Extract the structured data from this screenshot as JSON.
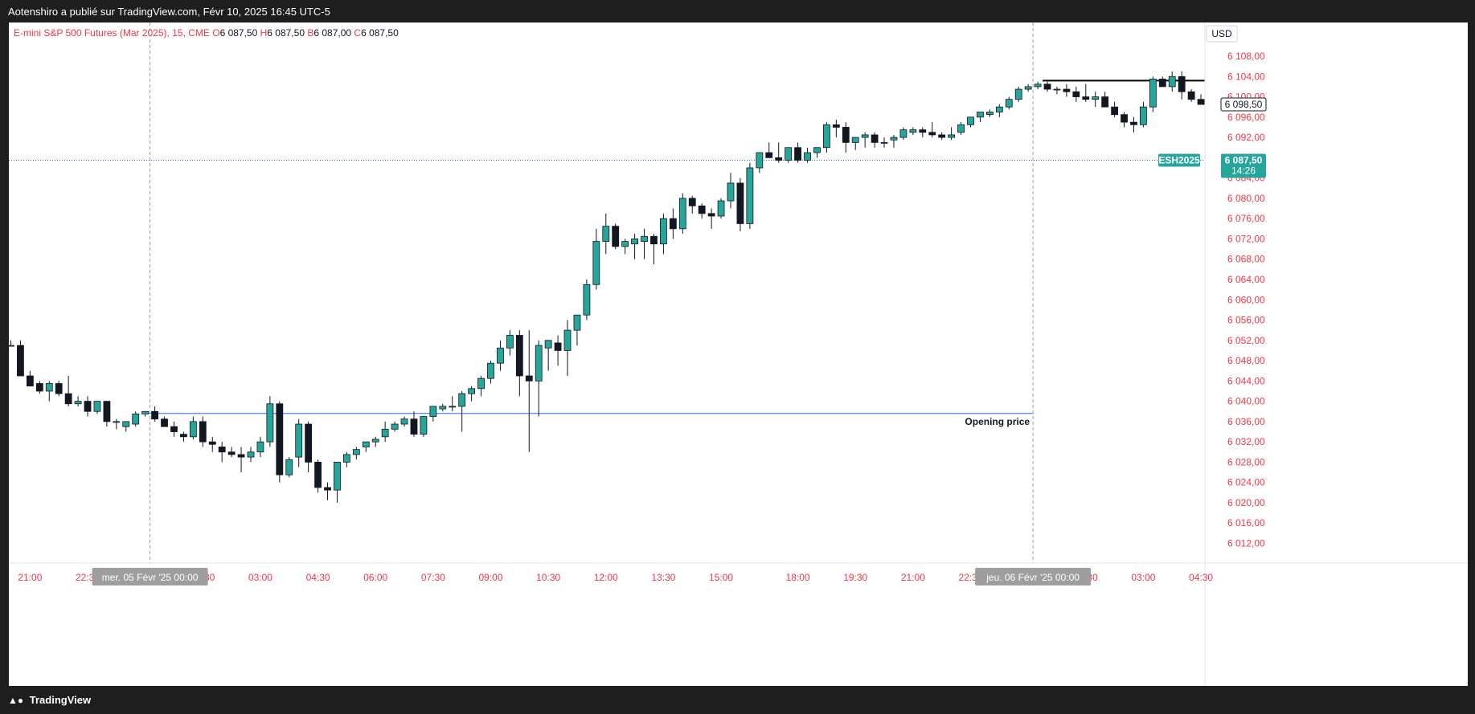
{
  "header": {
    "publish_info": "Aotenshiro a publié sur TradingView.com, Févr 10, 2025 16:45 UTC-5"
  },
  "footer": {
    "brand": "TradingView",
    "logo_icon": "tradingview-logo-icon"
  },
  "colors": {
    "up": "#26a69a",
    "down": "#131722",
    "axis_text": "#f23645",
    "symbol_line": "#2962ff",
    "badge": "#26a69a"
  },
  "chart_data": {
    "type": "candlestick",
    "symbol": "E-mini S&P 500 Futures (Mar 2025)",
    "interval": "15",
    "exchange": "CME",
    "ohlc_legend": {
      "O_label": "O",
      "O": "6 087,50",
      "H_label": "H",
      "H": "6 087,50",
      "B_label": "B",
      "B": "6 087,00",
      "C_label": "C",
      "C": "6 087,50"
    },
    "currency": "USD",
    "ylim": [
      6012,
      6108
    ],
    "y_ticks": [
      "6 012,00",
      "6 016,00",
      "6 020,00",
      "6 024,00",
      "6 028,00",
      "6 032,00",
      "6 036,00",
      "6 040,00",
      "6 044,00",
      "6 048,00",
      "6 052,00",
      "6 056,00",
      "6 060,00",
      "6 064,00",
      "6 068,00",
      "6 072,00",
      "6 076,00",
      "6 080,00",
      "6 084,00",
      "6 088,00",
      "6 092,00",
      "6 096,00",
      "6 100,00",
      "6 104,00",
      "6 108,00"
    ],
    "y_tick_values": [
      6012,
      6016,
      6020,
      6024,
      6028,
      6032,
      6036,
      6040,
      6044,
      6048,
      6052,
      6056,
      6060,
      6064,
      6068,
      6072,
      6076,
      6080,
      6084,
      6088,
      6092,
      6096,
      6100,
      6104,
      6108
    ],
    "x_ticks": [
      "21:00",
      "22:30",
      "01:30",
      "03:00",
      "04:30",
      "06:00",
      "07:30",
      "09:00",
      "10:30",
      "12:00",
      "13:30",
      "15:00",
      "18:00",
      "19:30",
      "21:00",
      "22:30",
      "01:30",
      "03:00",
      "04:30"
    ],
    "x_tick_bars": [
      2,
      8,
      20,
      26,
      32,
      38,
      44,
      50,
      56,
      62,
      68,
      74,
      82,
      88,
      94,
      100,
      112,
      118,
      124
    ],
    "day_separators": [
      {
        "label": "mer. 05 Févr '25   00:00",
        "bar": 14.5
      },
      {
        "label": "jeu. 06 Févr '25   00:00",
        "bar": 106.5
      }
    ],
    "candles": [
      [
        6051,
        6052,
        6051,
        6051
      ],
      [
        6051,
        6052,
        6045,
        6045
      ],
      [
        6045,
        6046,
        6043,
        6043
      ],
      [
        6043.5,
        6044,
        6041.5,
        6042
      ],
      [
        6042,
        6044,
        6040,
        6043.5
      ],
      [
        6043.5,
        6044,
        6041,
        6041.5
      ],
      [
        6041.5,
        6045,
        6039,
        6039.5
      ],
      [
        6039.5,
        6041,
        6039,
        6040
      ],
      [
        6040,
        6041,
        6037,
        6038
      ],
      [
        6038,
        6040,
        6037.5,
        6040
      ],
      [
        6040,
        6040,
        6035,
        6036
      ],
      [
        6036,
        6036.5,
        6034.5,
        6036
      ],
      [
        6035,
        6036,
        6034,
        6036
      ],
      [
        6035.5,
        6038,
        6035,
        6037.5
      ],
      [
        6037.5,
        6038,
        6037,
        6038
      ],
      [
        6038,
        6039,
        6036,
        6036.5
      ],
      [
        6036.5,
        6037,
        6035,
        6035
      ],
      [
        6035,
        6036,
        6033,
        6034
      ],
      [
        6033.5,
        6034,
        6032,
        6033
      ],
      [
        6033,
        6037,
        6032.5,
        6036
      ],
      [
        6036,
        6037,
        6031,
        6032
      ],
      [
        6032,
        6033,
        6030,
        6031.5
      ],
      [
        6031,
        6032,
        6028,
        6030
      ],
      [
        6030,
        6031,
        6029,
        6029.5
      ],
      [
        6029.5,
        6031,
        6026,
        6029
      ],
      [
        6029,
        6031,
        6028,
        6030
      ],
      [
        6030,
        6033,
        6029,
        6032
      ],
      [
        6032,
        6041,
        6031,
        6039.5
      ],
      [
        6039.5,
        6040,
        6024,
        6025.5
      ],
      [
        6025.5,
        6029,
        6025,
        6028.5
      ],
      [
        6029,
        6036.5,
        6027,
        6035.5
      ],
      [
        6035.5,
        6036,
        6026,
        6028
      ],
      [
        6028,
        6028.5,
        6022,
        6023
      ],
      [
        6023,
        6024,
        6020.5,
        6022.5
      ],
      [
        6022.5,
        6028,
        6020,
        6028
      ],
      [
        6028,
        6030,
        6027,
        6029.5
      ],
      [
        6029.5,
        6031,
        6028.5,
        6030.5
      ],
      [
        6031,
        6032,
        6030,
        6032
      ],
      [
        6032,
        6033,
        6031,
        6032.5
      ],
      [
        6033,
        6036,
        6032,
        6034.5
      ],
      [
        6034.5,
        6036,
        6034,
        6035.5
      ],
      [
        6035.5,
        6037,
        6035,
        6036.5
      ],
      [
        6036.5,
        6038,
        6033,
        6033.5
      ],
      [
        6033.5,
        6037,
        6033,
        6037
      ],
      [
        6037,
        6039,
        6036,
        6039
      ],
      [
        6038.5,
        6039.5,
        6038,
        6039
      ],
      [
        6039,
        6041,
        6038,
        6039
      ],
      [
        6039,
        6042,
        6034,
        6041.5
      ],
      [
        6041.5,
        6043,
        6040,
        6042.5
      ],
      [
        6042.5,
        6045,
        6041,
        6044.5
      ],
      [
        6044.5,
        6048,
        6043.5,
        6047.5
      ],
      [
        6047.5,
        6052,
        6046,
        6050.5
      ],
      [
        6050.5,
        6054,
        6049,
        6053
      ],
      [
        6053,
        6054,
        6041,
        6045
      ],
      [
        6045,
        6054,
        6030,
        6044
      ],
      [
        6044,
        6052,
        6037,
        6051
      ],
      [
        6050.5,
        6052,
        6046,
        6052
      ],
      [
        6051.5,
        6053,
        6047,
        6050
      ],
      [
        6050,
        6056,
        6045,
        6054
      ],
      [
        6054,
        6057,
        6051,
        6057
      ],
      [
        6057,
        6064,
        6056,
        6063
      ],
      [
        6063,
        6074,
        6062,
        6071.5
      ],
      [
        6071.5,
        6077,
        6069,
        6074.5
      ],
      [
        6074.5,
        6075,
        6070,
        6070.5
      ],
      [
        6070.5,
        6072,
        6069,
        6071.5
      ],
      [
        6071,
        6073,
        6068,
        6072
      ],
      [
        6071.5,
        6074,
        6068,
        6072.5
      ],
      [
        6072.5,
        6073,
        6067,
        6071
      ],
      [
        6071,
        6077,
        6069,
        6076
      ],
      [
        6076,
        6078,
        6072,
        6074
      ],
      [
        6074,
        6081,
        6073,
        6080
      ],
      [
        6080,
        6080.5,
        6077,
        6078.5
      ],
      [
        6078.5,
        6079,
        6076,
        6077
      ],
      [
        6077,
        6078,
        6074,
        6076.5
      ],
      [
        6076.5,
        6080,
        6076,
        6079.5
      ],
      [
        6079.5,
        6085,
        6078,
        6083
      ],
      [
        6083,
        6084,
        6073.5,
        6075
      ],
      [
        6075,
        6087,
        6074,
        6086
      ],
      [
        6086,
        6089,
        6085,
        6089
      ],
      [
        6089,
        6091,
        6088,
        6088
      ],
      [
        6088,
        6091,
        6087,
        6087.5
      ],
      [
        6087.5,
        6090,
        6087,
        6090
      ],
      [
        6090,
        6091,
        6087,
        6087.5
      ],
      [
        6087.5,
        6090,
        6087,
        6089
      ],
      [
        6089,
        6090,
        6088,
        6090
      ],
      [
        6090,
        6095,
        6089,
        6094.5
      ],
      [
        6094.5,
        6095.5,
        6092,
        6094
      ],
      [
        6094,
        6095,
        6089,
        6091
      ],
      [
        6091,
        6092,
        6089.5,
        6092
      ],
      [
        6092,
        6093,
        6090,
        6092.5
      ],
      [
        6092.5,
        6093,
        6090,
        6091
      ],
      [
        6091,
        6092,
        6090,
        6091
      ],
      [
        6091.5,
        6092.5,
        6090,
        6092
      ],
      [
        6092,
        6094,
        6091.5,
        6093.5
      ],
      [
        6093,
        6094,
        6092.5,
        6093.5
      ],
      [
        6093.5,
        6094,
        6092,
        6093
      ],
      [
        6093,
        6095,
        6092,
        6092.5
      ],
      [
        6092.5,
        6093,
        6091.5,
        6092
      ],
      [
        6092,
        6094,
        6091.5,
        6092.5
      ],
      [
        6093,
        6095,
        6092.5,
        6094.5
      ],
      [
        6094.5,
        6096,
        6094,
        6096
      ],
      [
        6096,
        6097,
        6095,
        6097
      ],
      [
        6096.5,
        6097.5,
        6096,
        6097
      ],
      [
        6097,
        6098.5,
        6096,
        6098
      ],
      [
        6098,
        6100,
        6097.5,
        6099.5
      ],
      [
        6099.5,
        6102,
        6099,
        6101.5
      ],
      [
        6101.5,
        6102.5,
        6101,
        6102
      ],
      [
        6102,
        6103,
        6101.5,
        6102.5
      ],
      [
        6102.5,
        6103,
        6101,
        6101.5
      ],
      [
        6101.5,
        6102,
        6100.5,
        6101.5
      ],
      [
        6101.5,
        6102.5,
        6100,
        6101
      ],
      [
        6101,
        6102,
        6099,
        6100
      ],
      [
        6100,
        6102.5,
        6099,
        6099.5
      ],
      [
        6099.5,
        6101,
        6098,
        6100
      ],
      [
        6100,
        6101,
        6098,
        6098
      ],
      [
        6098,
        6099,
        6096,
        6096.5
      ],
      [
        6096.5,
        6097,
        6094,
        6095
      ],
      [
        6095,
        6096,
        6093,
        6094.5
      ],
      [
        6094.5,
        6099,
        6094,
        6098
      ],
      [
        6098,
        6104,
        6097,
        6103.5
      ],
      [
        6103.5,
        6104,
        6102,
        6102
      ],
      [
        6102,
        6105,
        6101,
        6104
      ],
      [
        6104,
        6105,
        6099.5,
        6101
      ],
      [
        6101,
        6101.5,
        6099,
        6099.5
      ],
      [
        6099.5,
        6100.5,
        6098.5,
        6098.5
      ]
    ],
    "horizontal_lines": [
      {
        "name": "opening-price-line",
        "label": "Opening price",
        "value": 6037.6,
        "color": "#2962ff",
        "from_bar": 14,
        "to_bar": 106.5
      },
      {
        "name": "resistance-line",
        "label": "",
        "value": 6103.2,
        "color": "#000000",
        "from_bar": 107.5,
        "to_bar": 124.6
      }
    ],
    "price_line": {
      "value": 6087.5
    },
    "badges": {
      "current_price": "6 098,50",
      "current_price_value": 6098.5,
      "symbol_tag": "ESH2025",
      "last_price": "6 087,50",
      "countdown": "14:26",
      "last_price_value": 6087.5
    }
  }
}
